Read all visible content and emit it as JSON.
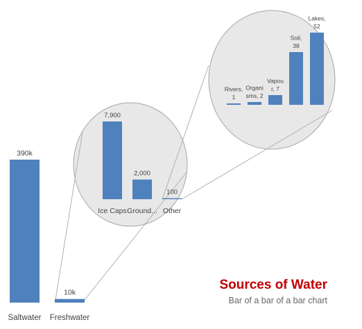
{
  "colors": {
    "bar": "#4F81BD",
    "title": "#C00000",
    "circle_fill": "#E8E8E8",
    "circle_stroke": "#A6A6A6"
  },
  "title": "Sources of Water",
  "subtitle": "Bar of a bar of a bar chart",
  "chart_data": [
    {
      "type": "bar",
      "categories": [
        "Saltwater",
        "Freshwater"
      ],
      "values": [
        390000,
        10000
      ],
      "data_labels": [
        "390k",
        "10k"
      ]
    },
    {
      "type": "bar",
      "categories": [
        "Ice Caps",
        "Ground...",
        "Other"
      ],
      "values": [
        7900,
        2000,
        100
      ],
      "data_labels": [
        "7,900",
        "2,000",
        "100"
      ]
    },
    {
      "type": "bar",
      "categories": [
        "Rivers",
        "Organisms",
        "Vapour",
        "Soil",
        "Lakes"
      ],
      "values": [
        1,
        2,
        7,
        38,
        52
      ],
      "data_labels": [
        [
          "Rivers,",
          "1"
        ],
        [
          "Organi",
          "sms, 2"
        ],
        [
          "Vapou",
          "r, 7"
        ],
        [
          "Soil,",
          "38"
        ],
        [
          "Lakes,",
          "52"
        ]
      ]
    }
  ]
}
